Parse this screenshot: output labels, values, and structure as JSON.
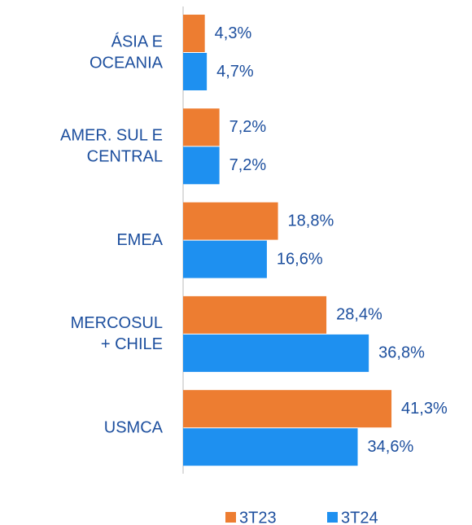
{
  "chart_data": {
    "type": "hbar",
    "categories": [
      [
        "ÁSIA E",
        "OCEANIA"
      ],
      [
        "AMER. SUL E",
        "CENTRAL"
      ],
      [
        "EMEA"
      ],
      [
        "MERCOSUL",
        "+ CHILE"
      ],
      [
        "USMCA"
      ]
    ],
    "series": [
      {
        "name": "3T23",
        "color": "#ed7d31",
        "values": [
          4.3,
          7.2,
          18.8,
          28.4,
          41.3
        ],
        "value_labels": [
          "4,3%",
          "7,2%",
          "18,8%",
          "28,4%",
          "41,3%"
        ]
      },
      {
        "name": "3T24",
        "color": "#1e90f0",
        "values": [
          4.7,
          7.2,
          16.6,
          36.8,
          34.6
        ],
        "value_labels": [
          "4,7%",
          "7,2%",
          "16,6%",
          "36,8%",
          "34,6%"
        ]
      }
    ],
    "xlim": [
      0,
      45
    ]
  }
}
